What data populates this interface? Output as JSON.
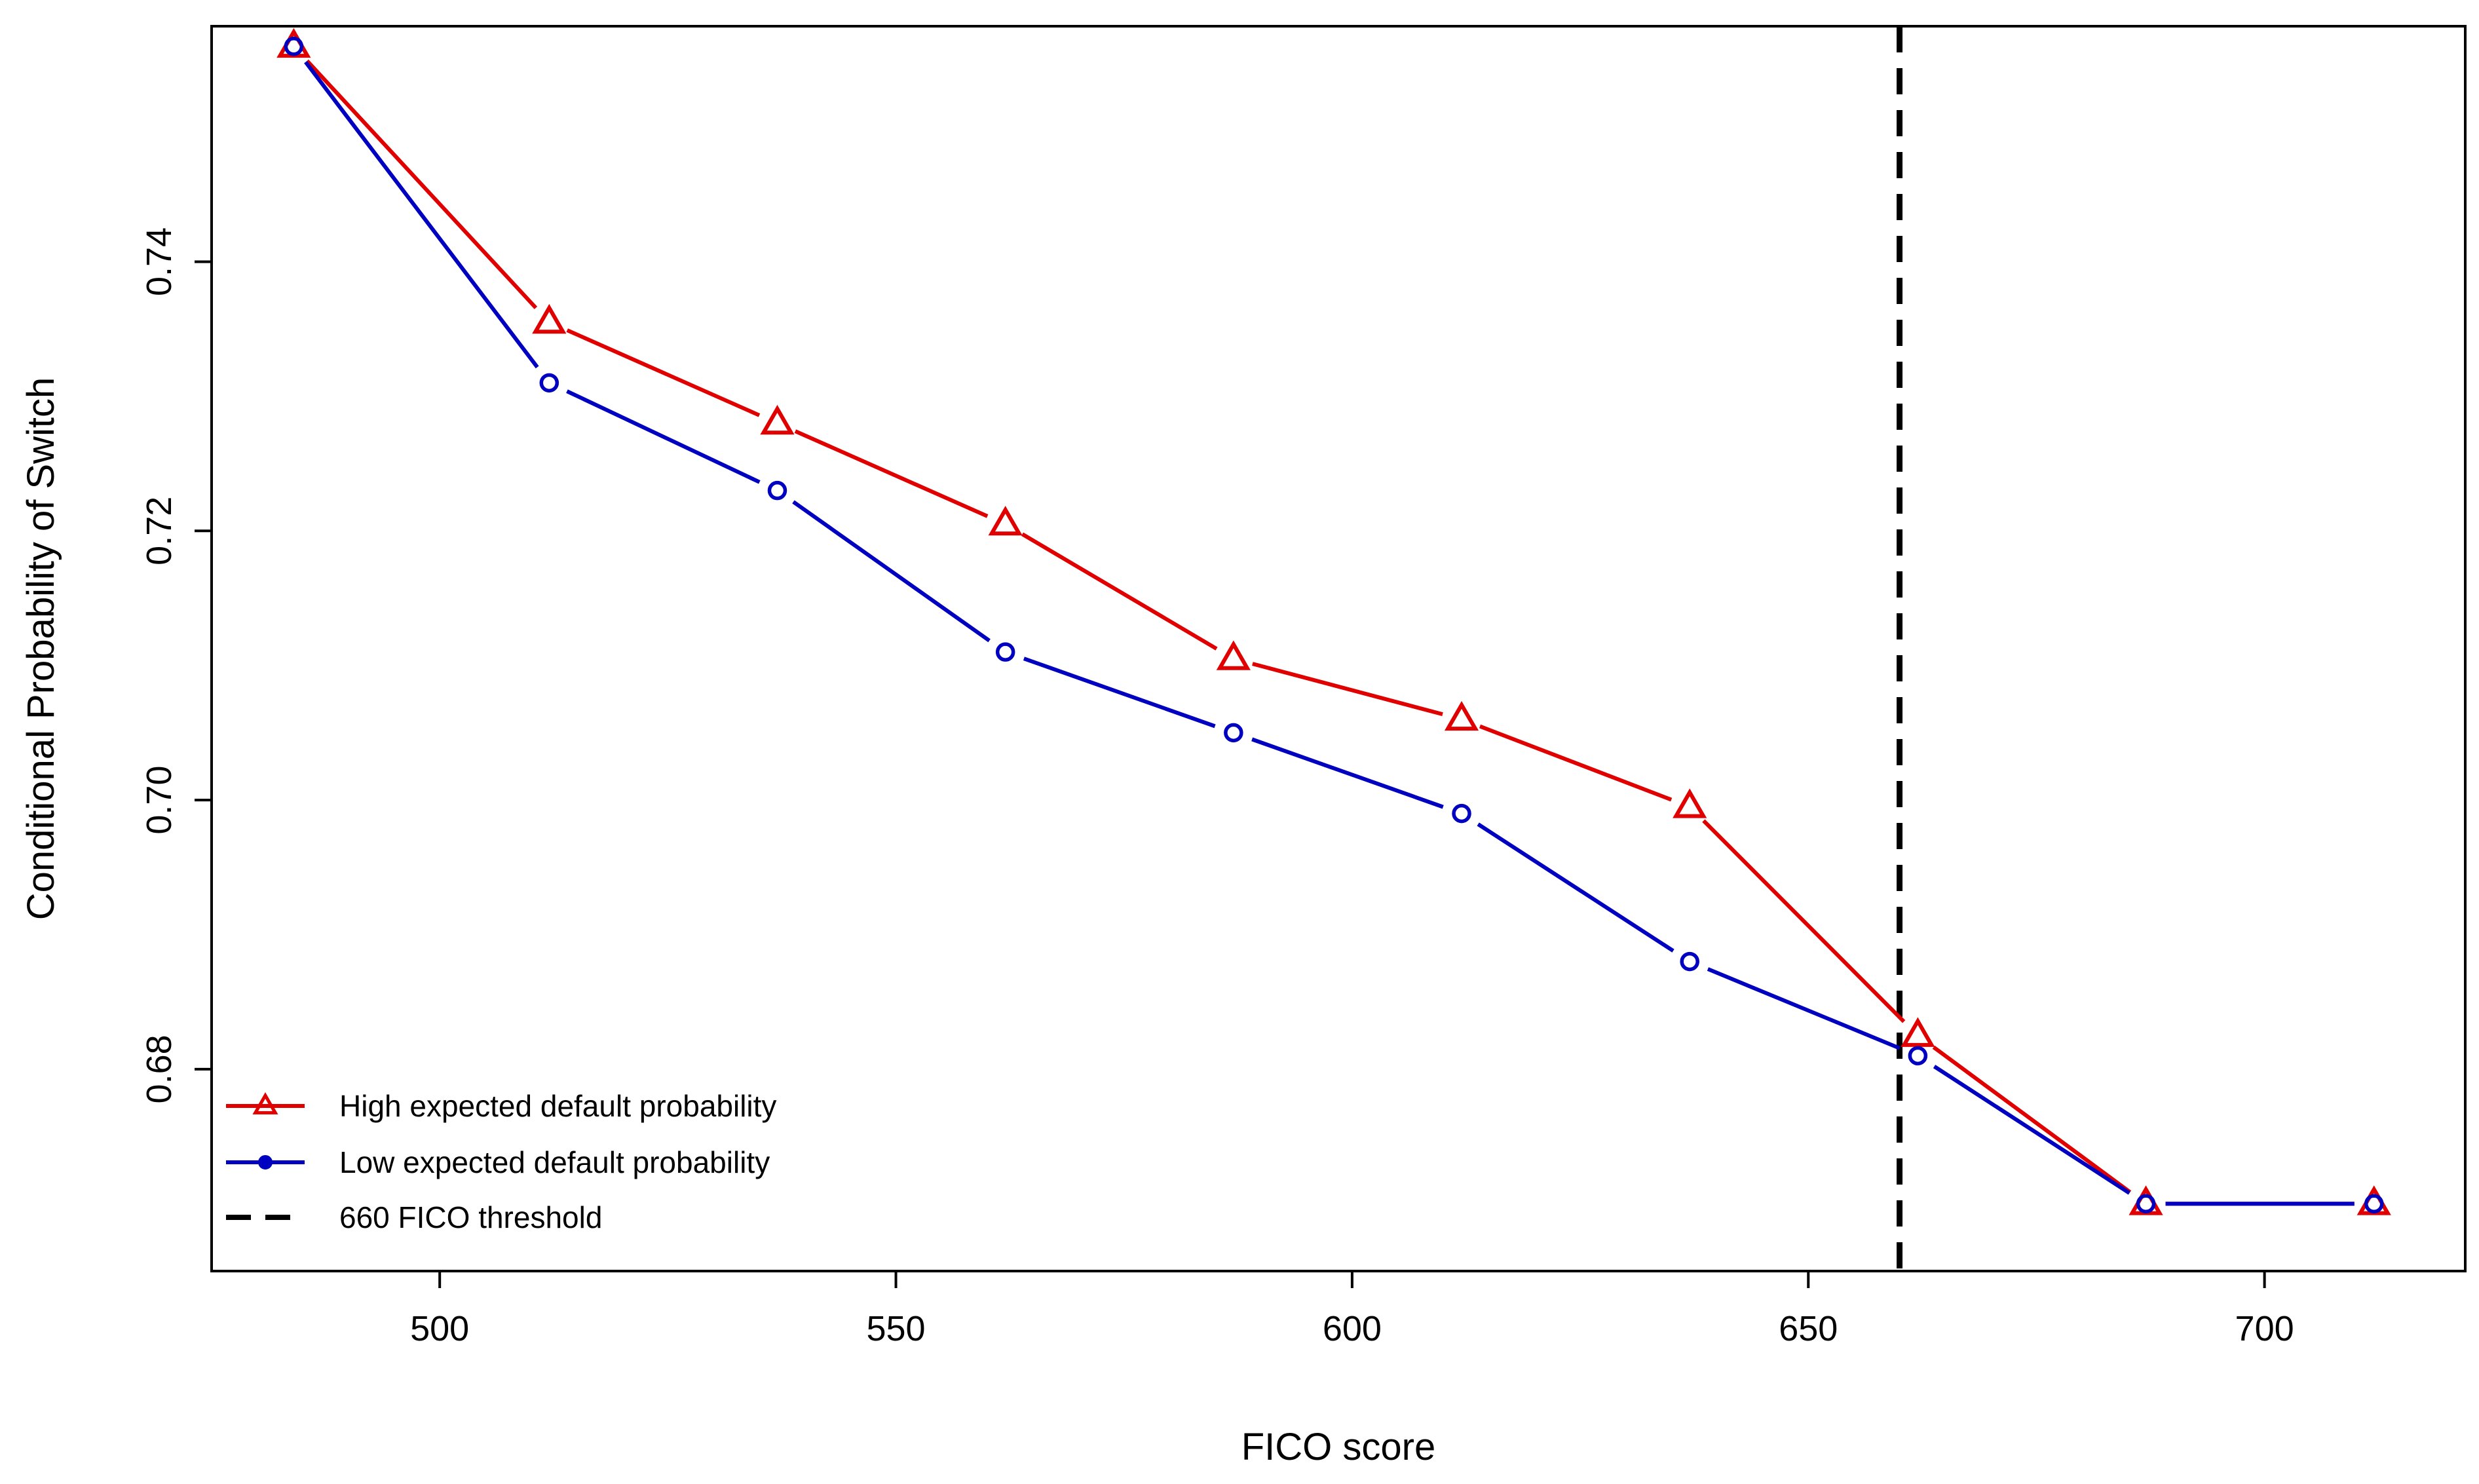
{
  "chart_data": {
    "type": "line",
    "title": "",
    "xlabel": "FICO score",
    "ylabel": "Conditional Probability of Switch",
    "xlim": [
      475,
      722
    ],
    "ylim": [
      0.665,
      0.7575
    ],
    "x_ticks": [
      500,
      550,
      600,
      650,
      700
    ],
    "x_tick_labels": [
      "500",
      "550",
      "600",
      "650",
      "700"
    ],
    "y_ticks": [
      0.68,
      0.7,
      0.72,
      0.74
    ],
    "y_tick_labels": [
      "0.68",
      "0.70",
      "0.72",
      "0.74"
    ],
    "grid": false,
    "legend_position": "bottom-left",
    "series": [
      {
        "name": "High expected default probability",
        "color": "#e00000",
        "marker": "triangle",
        "x": [
          484,
          512,
          537,
          562,
          587,
          612,
          637,
          662,
          687,
          712
        ],
        "values": [
          0.756,
          0.7355,
          0.728,
          0.7205,
          0.7105,
          0.706,
          0.6995,
          0.6825,
          0.67,
          0.67
        ]
      },
      {
        "name": "Low expected default probability",
        "color": "#0000c0",
        "marker": "circle",
        "x": [
          484,
          512,
          537,
          562,
          587,
          612,
          637,
          662,
          687,
          712
        ],
        "values": [
          0.756,
          0.731,
          0.723,
          0.711,
          0.705,
          0.699,
          0.688,
          0.681,
          0.67,
          0.67
        ]
      }
    ],
    "reference_lines": [
      {
        "name": "660 FICO threshold",
        "orientation": "vertical",
        "x": 660,
        "color": "#000000",
        "style": "dashed"
      }
    ]
  }
}
